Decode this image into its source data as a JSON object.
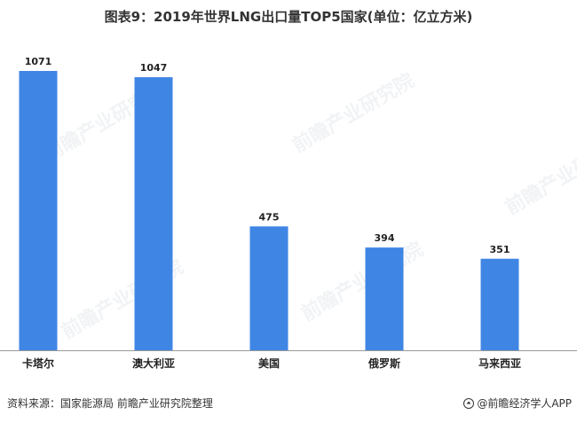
{
  "chart_data": {
    "type": "bar",
    "title": "图表9：2019年世界LNG出口量TOP5国家(单位：亿立方米)",
    "categories": [
      "卡塔尔",
      "澳大利亚",
      "美国",
      "俄罗斯",
      "马来西亚"
    ],
    "values": [
      1071,
      1047,
      475,
      394,
      351
    ],
    "data_labels": [
      "1071",
      "1047",
      "475",
      "394",
      "351"
    ],
    "xlabel": "",
    "ylabel": "",
    "ylim": [
      0,
      1071
    ],
    "grid": false,
    "legend": "none",
    "bar_color": "#3f86e4",
    "axis_color": "#999999"
  },
  "footer": {
    "source": "资料来源：国家能源局  前瞻产业研究院整理",
    "brand": "@前瞻经济学人APP"
  },
  "watermark": {
    "text": "前瞻产业研究院"
  }
}
